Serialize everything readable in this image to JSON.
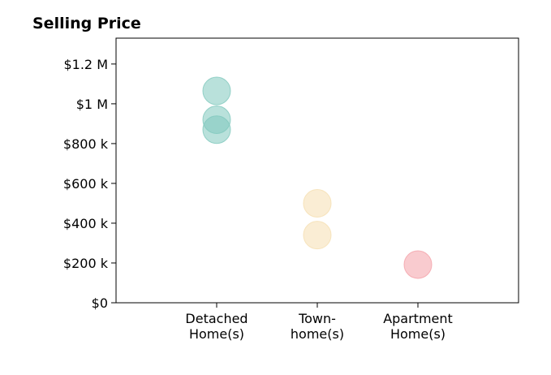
{
  "chart_data": {
    "type": "scatter",
    "title": "Selling Price",
    "xlabel": "",
    "ylabel": "",
    "categories": [
      [
        "Detached",
        "Home(s)"
      ],
      [
        "Town-",
        "home(s)"
      ],
      [
        "Apartment",
        "Home(s)"
      ]
    ],
    "ylim": [
      0,
      1330000
    ],
    "yticks": [
      0,
      200000,
      400000,
      600000,
      800000,
      1000000,
      1200000
    ],
    "ytick_labels": [
      "$0",
      "$200 k",
      "$400 k",
      "$600 k",
      "$800 k",
      "$1 M",
      "$1.2 M"
    ],
    "grid": false,
    "series": [
      {
        "category_index": 0,
        "color": "#7fc8bd",
        "values": [
          1065000,
          920000,
          870000
        ]
      },
      {
        "category_index": 1,
        "color": "#f5dfb0",
        "values": [
          500000,
          340000
        ]
      },
      {
        "category_index": 2,
        "color": "#f4a0a8",
        "values": [
          192000
        ]
      }
    ]
  }
}
